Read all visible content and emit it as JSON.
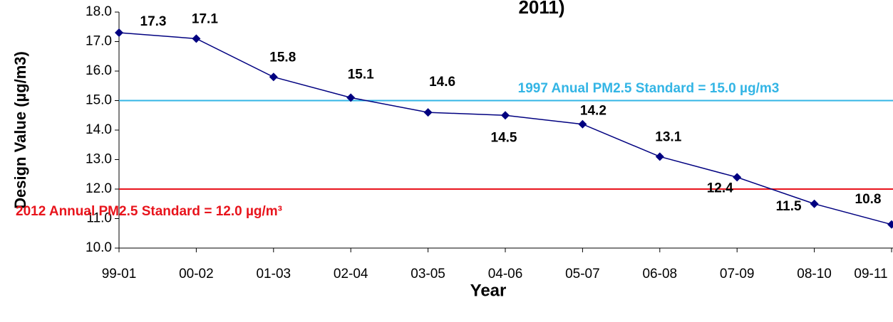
{
  "chart_data": {
    "type": "line",
    "title": "2011)",
    "x_label": "Year",
    "y_label": "Design Value (µg/m3)",
    "categories": [
      "99-01",
      "00-02",
      "01-03",
      "02-04",
      "03-05",
      "04-06",
      "05-07",
      "06-08",
      "07-09",
      "08-10",
      "09-11"
    ],
    "series": [
      {
        "name": "Design Value",
        "color": "#000080",
        "values": [
          17.3,
          17.1,
          15.8,
          15.1,
          14.6,
          14.5,
          14.2,
          13.1,
          12.4,
          11.5,
          10.8
        ]
      }
    ],
    "ylim": [
      10,
      18
    ],
    "yticks": [
      {
        "value": 10,
        "label": "10.0"
      },
      {
        "value": 11,
        "label": "11.0"
      },
      {
        "value": 12,
        "label": "12.0"
      },
      {
        "value": 13,
        "label": "13.0"
      },
      {
        "value": 14,
        "label": "14.0"
      },
      {
        "value": 15,
        "label": "15.0"
      },
      {
        "value": 16,
        "label": "16.0"
      },
      {
        "value": 17,
        "label": "17.0"
      },
      {
        "value": 18,
        "label": "18.0"
      }
    ],
    "reference_lines": [
      {
        "value": 15,
        "label": "1997 Anual PM2.5 Standard =  15.0 µg/m3",
        "color": "#33b5e5"
      },
      {
        "value": 12,
        "label": "2012 Annual PM2.5 Standard = 12.0 µg/m³",
        "color": "#e8141c"
      }
    ]
  }
}
